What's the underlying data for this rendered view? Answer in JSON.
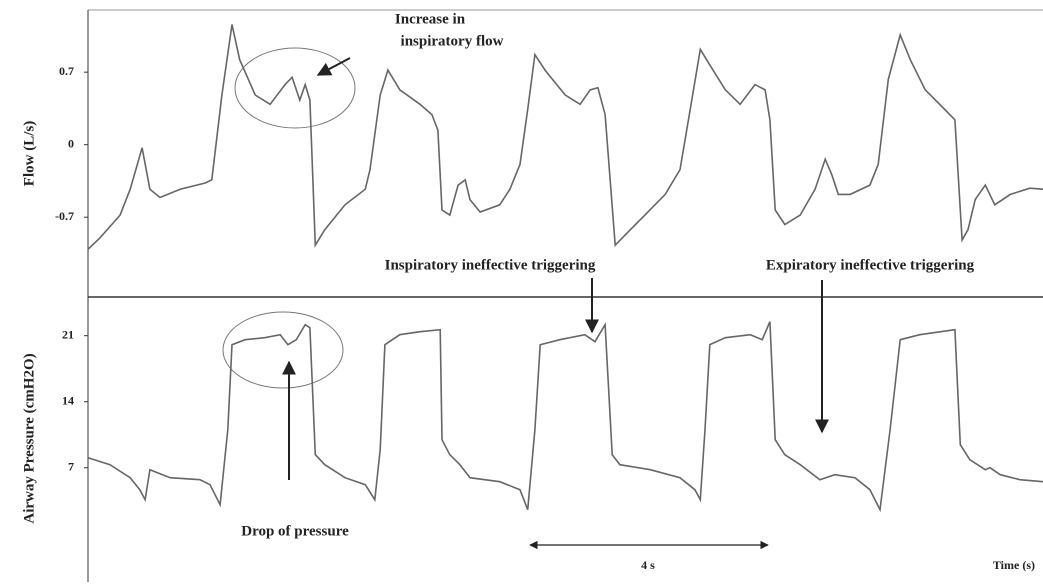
{
  "chart_data": [
    {
      "type": "line",
      "ylabel": "Flow (L/s)",
      "annotations": [
        "Increase in",
        "inspiratory flow",
        "Inspiratory ineffective triggering",
        "Expiratory ineffective triggering"
      ],
      "xlim": [
        0,
        16.05
      ],
      "ylim": [
        -1.47,
        1.3
      ],
      "yticks": [
        -0.7,
        0,
        0.7
      ],
      "series": [
        {
          "color": "#666666",
          "x": [
            0,
            0.2,
            0.54,
            0.71,
            0.91,
            1.04,
            1.21,
            1.55,
            1.97,
            2.08,
            2.25,
            2.42,
            2.55,
            2.81,
            3.06,
            3.31,
            3.43,
            3.56,
            3.65,
            3.73,
            3.82,
            3.98,
            4.32,
            4.66,
            4.74,
            4.91,
            5.04,
            5.24,
            5.58,
            5.78,
            5.88,
            5.95,
            6.08,
            6.22,
            6.34,
            6.42,
            6.59,
            6.92,
            7.09,
            7.26,
            7.39,
            7.51,
            7.68,
            8.02,
            8.27,
            8.44,
            8.57,
            8.69,
            8.86,
            9.03,
            9.36,
            9.7,
            9.95,
            10.12,
            10.29,
            10.45,
            10.71,
            10.96,
            11.21,
            11.38,
            11.46,
            11.55,
            11.71,
            11.97,
            12.22,
            12.39,
            12.5,
            12.61,
            12.81,
            13.14,
            13.28,
            13.45,
            13.65,
            13.82,
            14.07,
            14.4,
            14.57,
            14.69,
            14.79,
            14.91,
            15.08,
            15.24,
            15.5,
            15.83,
            16.05
          ],
          "values": [
            -1.01,
            -0.9,
            -0.68,
            -0.43,
            -0.03,
            -0.43,
            -0.51,
            -0.43,
            -0.37,
            -0.34,
            0.48,
            1.16,
            0.82,
            0.48,
            0.39,
            0.58,
            0.65,
            0.43,
            0.58,
            0.43,
            -0.97,
            -0.82,
            -0.58,
            -0.43,
            -0.24,
            0.48,
            0.72,
            0.53,
            0.39,
            0.29,
            0.14,
            -0.63,
            -0.68,
            -0.39,
            -0.34,
            -0.53,
            -0.65,
            -0.58,
            -0.43,
            -0.19,
            0.34,
            0.87,
            0.72,
            0.48,
            0.39,
            0.53,
            0.55,
            0.29,
            -0.97,
            -0.87,
            -0.68,
            -0.48,
            -0.24,
            0.34,
            0.92,
            0.77,
            0.53,
            0.39,
            0.58,
            0.53,
            0.24,
            -0.63,
            -0.77,
            -0.68,
            -0.43,
            -0.14,
            -0.29,
            -0.48,
            -0.48,
            -0.39,
            -0.19,
            0.63,
            1.06,
            0.82,
            0.53,
            0.34,
            0.24,
            -0.92,
            -0.82,
            -0.53,
            -0.39,
            -0.58,
            -0.48,
            -0.42,
            -0.43
          ]
        }
      ]
    },
    {
      "type": "line",
      "ylabel": "Airway Pressure (cmH2O)",
      "xlabel": "Time (s)",
      "annotations": [
        "Drop of pressure",
        "4 s"
      ],
      "xlim": [
        0,
        16.05
      ],
      "ylim": [
        -4.9,
        25.1
      ],
      "yticks": [
        7,
        14,
        21
      ],
      "series": [
        {
          "color": "#666666",
          "x": [
            0,
            0.37,
            0.71,
            0.87,
            0.96,
            1.04,
            1.38,
            1.88,
            2.05,
            2.22,
            2.35,
            2.42,
            2.64,
            2.97,
            3.23,
            3.36,
            3.5,
            3.65,
            3.73,
            3.82,
            3.98,
            4.32,
            4.66,
            4.82,
            4.91,
            4.99,
            5.24,
            5.58,
            5.92,
            5.95,
            6.08,
            6.25,
            6.42,
            6.92,
            7.26,
            7.39,
            7.51,
            7.6,
            7.93,
            8.35,
            8.52,
            8.69,
            8.81,
            8.94,
            9.45,
            9.95,
            10.2,
            10.29,
            10.37,
            10.45,
            10.71,
            11.13,
            11.33,
            11.46,
            11.55,
            11.71,
            11.97,
            12.3,
            12.55,
            12.89,
            13.14,
            13.31,
            13.48,
            13.65,
            13.98,
            14.57,
            14.66,
            14.82,
            15.08,
            15.16,
            15.33,
            15.66,
            16.05
          ],
          "values": [
            8.06,
            7.32,
            5.94,
            4.67,
            3.61,
            6.79,
            5.94,
            5.73,
            5.2,
            3.08,
            11.03,
            20.04,
            20.57,
            20.79,
            21.1,
            20.04,
            20.57,
            22.16,
            21.85,
            8.38,
            7.32,
            5.94,
            5.2,
            3.61,
            8.91,
            20.04,
            21.1,
            21.42,
            21.63,
            9.97,
            8.38,
            7.32,
            5.94,
            5.52,
            4.67,
            2.55,
            11.03,
            20.04,
            20.57,
            21.1,
            20.36,
            22.16,
            8.38,
            7.32,
            6.79,
            5.94,
            4.67,
            3.61,
            11.03,
            20.04,
            20.79,
            21.1,
            20.57,
            22.48,
            9.97,
            8.38,
            7.32,
            5.73,
            6.26,
            5.94,
            4.67,
            2.55,
            11.03,
            20.57,
            21.1,
            21.63,
            9.44,
            7.85,
            6.79,
            7.0,
            6.26,
            5.73,
            5.52
          ]
        }
      ]
    }
  ]
}
